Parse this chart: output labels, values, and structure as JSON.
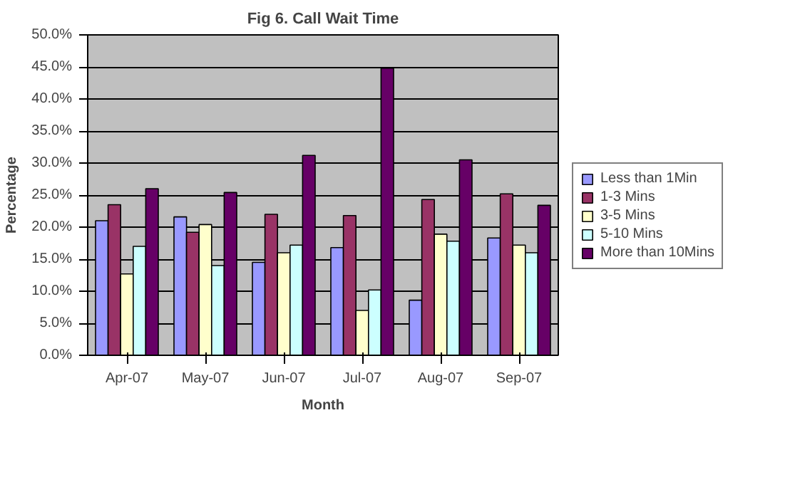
{
  "chart_data": {
    "type": "bar",
    "title": "Fig 6. Call Wait Time",
    "xlabel": "Month",
    "ylabel": "Percentage",
    "categories": [
      "Apr-07",
      "May-07",
      "Jun-07",
      "Jul-07",
      "Aug-07",
      "Sep-07"
    ],
    "series": [
      {
        "name": "Less than 1Min",
        "color": "#9999ff",
        "values": [
          21.0,
          21.6,
          14.5,
          16.8,
          8.6,
          18.3
        ]
      },
      {
        "name": "1-3 Mins",
        "color": "#993366",
        "values": [
          23.5,
          19.2,
          22.0,
          21.8,
          24.3,
          25.2
        ]
      },
      {
        "name": "3-5 Mins",
        "color": "#ffffcc",
        "values": [
          12.7,
          20.4,
          16.0,
          7.0,
          18.9,
          17.2
        ]
      },
      {
        "name": "5-10 Mins",
        "color": "#ccffff",
        "values": [
          17.0,
          14.0,
          17.2,
          10.2,
          17.8,
          16.0
        ]
      },
      {
        "name": "More than 10Mins",
        "color": "#660066",
        "values": [
          26.0,
          25.4,
          31.2,
          44.8,
          30.5,
          23.4
        ]
      }
    ],
    "ylim": [
      0,
      50
    ],
    "yticks": [
      {
        "value": 0,
        "label": "0.0%"
      },
      {
        "value": 5,
        "label": "5.0%"
      },
      {
        "value": 10,
        "label": "10.0%"
      },
      {
        "value": 15,
        "label": "15.0%"
      },
      {
        "value": 20,
        "label": "20.0%"
      },
      {
        "value": 25,
        "label": "25.0%"
      },
      {
        "value": 30,
        "label": "30.0%"
      },
      {
        "value": 35,
        "label": "35.0%"
      },
      {
        "value": 40,
        "label": "40.0%"
      },
      {
        "value": 45,
        "label": "45.0%"
      },
      {
        "value": 50,
        "label": "50.0%"
      }
    ],
    "grid": "y",
    "legend": "right"
  }
}
